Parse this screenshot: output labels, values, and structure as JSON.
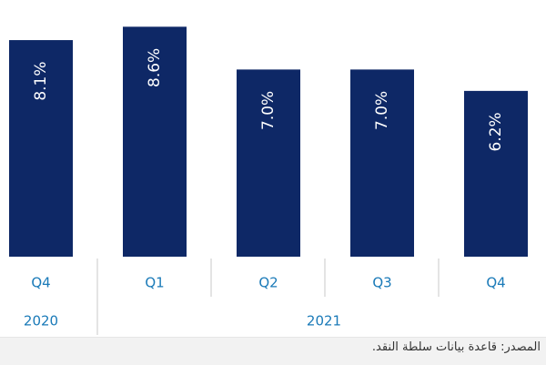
{
  "chart_data": {
    "type": "bar",
    "categories": [
      "Q4",
      "Q1",
      "Q2",
      "Q3",
      "Q4"
    ],
    "years": [
      "2020",
      "2021"
    ],
    "values": [
      8.1,
      8.6,
      7.0,
      7.0,
      6.2
    ],
    "value_labels": [
      "8.1%",
      "8.6%",
      "7.0%",
      "7.0%",
      "6.2%"
    ],
    "ylim": [
      0,
      9.6
    ],
    "grid": false,
    "title": "",
    "xlabel": "",
    "ylabel": ""
  },
  "source_note": "المصدر: قاعدة بيانات سلطة النقد.",
  "colors": {
    "bar": "#0e2866",
    "axis_text": "#1a7ab8",
    "footer_bg": "#f2f2f2"
  }
}
